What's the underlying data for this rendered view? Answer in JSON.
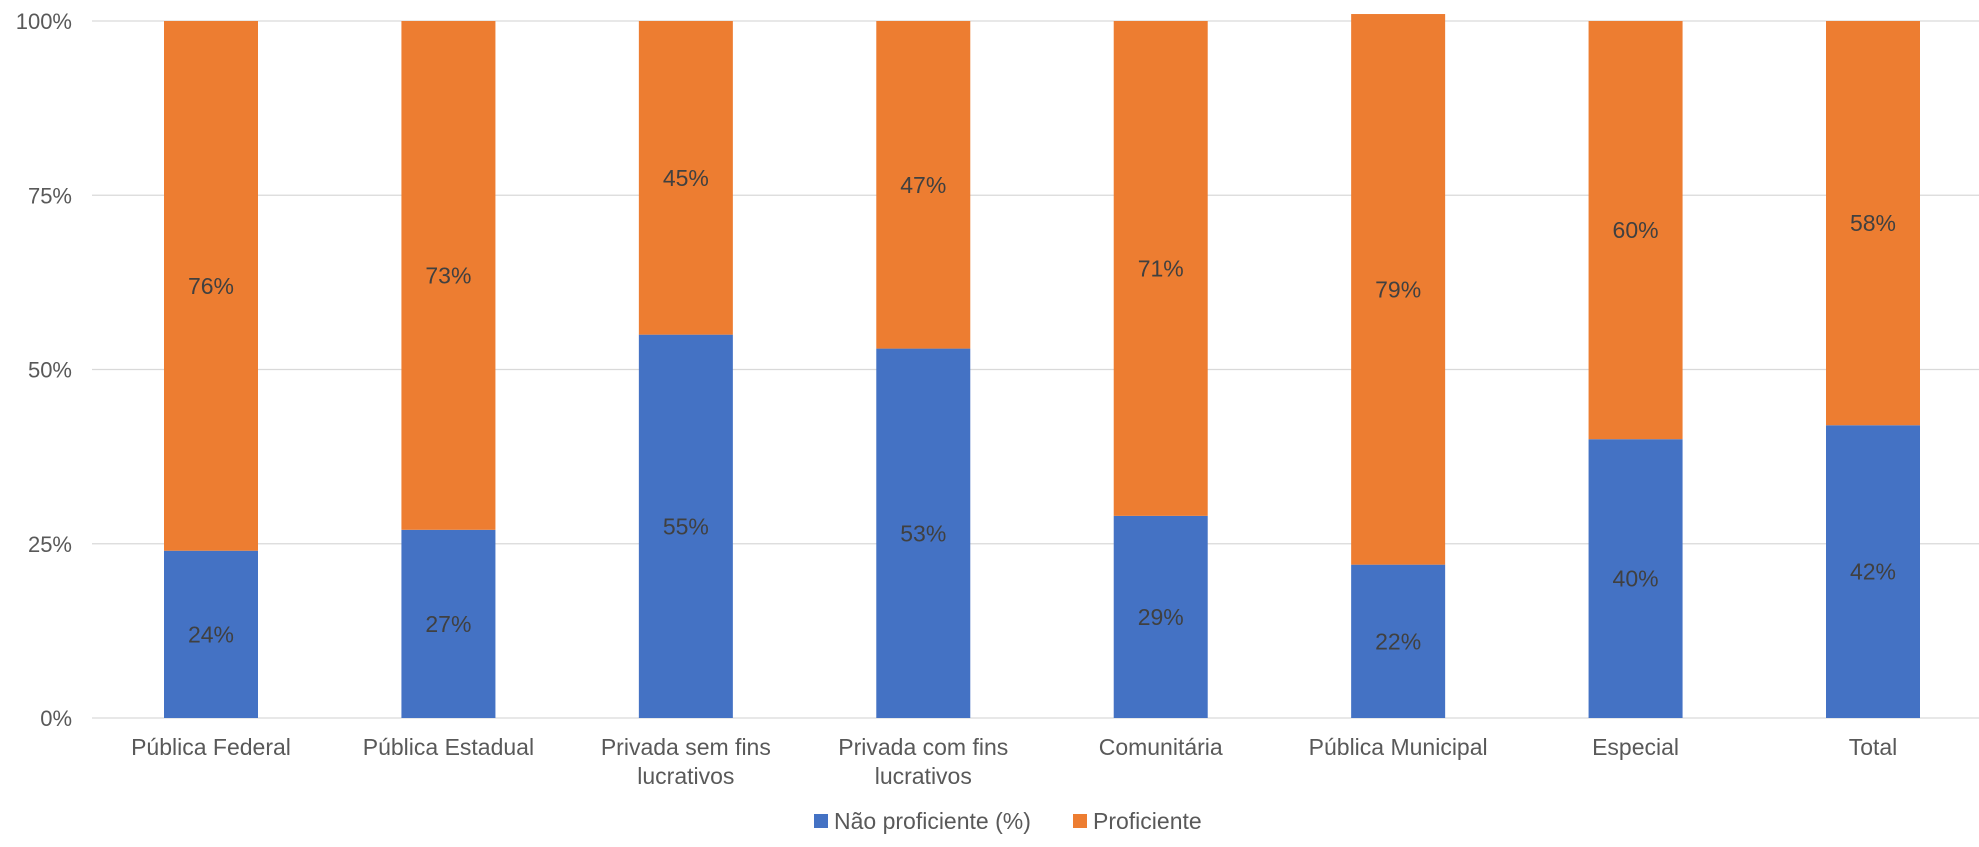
{
  "chart_data": {
    "type": "bar",
    "stacked": true,
    "percent_stacked": true,
    "categories": [
      [
        "Pública Federal"
      ],
      [
        "Pública Estadual"
      ],
      [
        "Privada sem fins",
        "lucrativos"
      ],
      [
        "Privada com fins",
        "lucrativos"
      ],
      [
        "Comunitária"
      ],
      [
        "Pública Municipal"
      ],
      [
        "Especial"
      ],
      [
        "Total"
      ]
    ],
    "series": [
      {
        "name": "Não proficiente (%)",
        "color": "#4472C4",
        "values": [
          24,
          27,
          55,
          53,
          29,
          22,
          40,
          42
        ],
        "labels": [
          "24%",
          "27%",
          "55%",
          "53%",
          "29%",
          "22%",
          "40%",
          "42%"
        ]
      },
      {
        "name": "Proficiente",
        "color": "#ED7D31",
        "values": [
          76,
          73,
          45,
          47,
          71,
          79,
          60,
          58
        ],
        "labels": [
          "76%",
          "73%",
          "45%",
          "47%",
          "71%",
          "79%",
          "60%",
          "58%"
        ]
      }
    ],
    "y_ticks": [
      "0%",
      "25%",
      "50%",
      "75%",
      "100%"
    ],
    "ylim": [
      0,
      100
    ],
    "grid": true,
    "legend": "bottom-center",
    "gridline_color": "#D9D9D9"
  }
}
